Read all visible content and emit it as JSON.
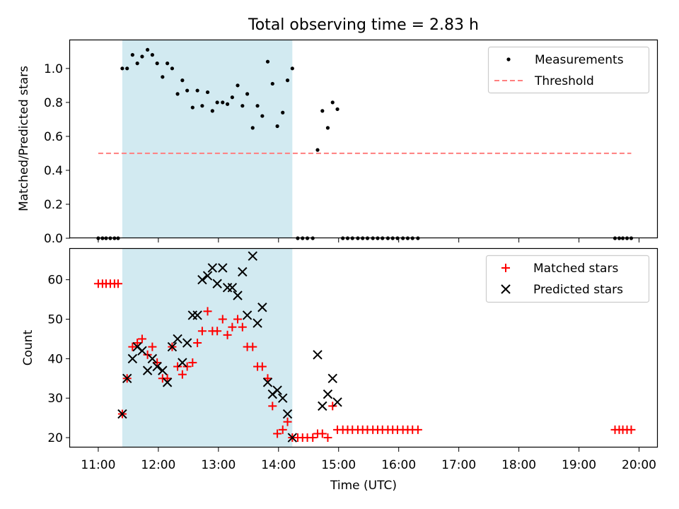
{
  "chart_data": {
    "title": "Total observing time = 2.83 h",
    "xlabel": "Time (UTC)",
    "x_ticks": [
      "11:00",
      "12:00",
      "13:00",
      "14:00",
      "15:00",
      "16:00",
      "17:00",
      "18:00",
      "19:00",
      "20:00"
    ],
    "xlim_hours": [
      10.53,
      20.3
    ],
    "shaded_interval_hours": [
      11.4,
      14.23
    ],
    "colors": {
      "shade": "#add8e6",
      "matched": "#ff0000",
      "predicted": "#000000",
      "threshold": "#ff7f7f",
      "measurement": "#000000"
    },
    "panels": [
      {
        "type": "scatter",
        "ylabel": "Matched/Predicted stars",
        "ylim": [
          0,
          1.17
        ],
        "y_ticks": [
          "0.0",
          "0.2",
          "0.4",
          "0.6",
          "0.8",
          "1.0"
        ],
        "y_tick_values": [
          0,
          0.2,
          0.4,
          0.6,
          0.8,
          1.0
        ],
        "legend": {
          "position": "upper right",
          "measurements_label": "Measurements",
          "threshold_label": "Threshold"
        },
        "threshold": {
          "y": 0.5,
          "x_start": 11.0,
          "x_end": 19.87
        },
        "measurements": [
          [
            11.0,
            0
          ],
          [
            11.07,
            0
          ],
          [
            11.13,
            0
          ],
          [
            11.2,
            0
          ],
          [
            11.27,
            0
          ],
          [
            11.33,
            0
          ],
          [
            11.4,
            1.0
          ],
          [
            11.48,
            1.0
          ],
          [
            11.57,
            1.08
          ],
          [
            11.65,
            1.03
          ],
          [
            11.73,
            1.07
          ],
          [
            11.82,
            1.11
          ],
          [
            11.9,
            1.08
          ],
          [
            11.98,
            1.03
          ],
          [
            12.07,
            0.95
          ],
          [
            12.15,
            1.03
          ],
          [
            12.23,
            1.0
          ],
          [
            12.32,
            0.85
          ],
          [
            12.4,
            0.93
          ],
          [
            12.48,
            0.87
          ],
          [
            12.57,
            0.77
          ],
          [
            12.65,
            0.87
          ],
          [
            12.73,
            0.78
          ],
          [
            12.82,
            0.86
          ],
          [
            12.9,
            0.75
          ],
          [
            12.98,
            0.8
          ],
          [
            13.07,
            0.8
          ],
          [
            13.15,
            0.79
          ],
          [
            13.23,
            0.83
          ],
          [
            13.32,
            0.9
          ],
          [
            13.4,
            0.78
          ],
          [
            13.48,
            0.85
          ],
          [
            13.57,
            0.65
          ],
          [
            13.65,
            0.78
          ],
          [
            13.73,
            0.72
          ],
          [
            13.82,
            1.04
          ],
          [
            13.9,
            0.91
          ],
          [
            13.98,
            0.66
          ],
          [
            14.07,
            0.74
          ],
          [
            14.15,
            0.93
          ],
          [
            14.23,
            1.0
          ],
          [
            14.32,
            0
          ],
          [
            14.4,
            0
          ],
          [
            14.48,
            0
          ],
          [
            14.57,
            0
          ],
          [
            14.65,
            0.52
          ],
          [
            14.73,
            0.75
          ],
          [
            14.82,
            0.65
          ],
          [
            14.9,
            0.8
          ],
          [
            14.98,
            0.76
          ],
          [
            15.07,
            0
          ],
          [
            15.15,
            0
          ],
          [
            15.23,
            0
          ],
          [
            15.32,
            0
          ],
          [
            15.4,
            0
          ],
          [
            15.48,
            0
          ],
          [
            15.57,
            0
          ],
          [
            15.65,
            0
          ],
          [
            15.73,
            0
          ],
          [
            15.82,
            0
          ],
          [
            15.9,
            0
          ],
          [
            15.98,
            0
          ],
          [
            16.07,
            0
          ],
          [
            16.15,
            0
          ],
          [
            16.23,
            0
          ],
          [
            16.32,
            0
          ],
          [
            19.6,
            0
          ],
          [
            19.67,
            0
          ],
          [
            19.73,
            0
          ],
          [
            19.8,
            0
          ],
          [
            19.87,
            0
          ]
        ]
      },
      {
        "type": "scatter",
        "ylabel": "Count",
        "ylim": [
          17.5,
          68
        ],
        "y_ticks": [
          "20",
          "30",
          "40",
          "50",
          "60"
        ],
        "y_tick_values": [
          20,
          30,
          40,
          50,
          60
        ],
        "legend": {
          "position": "upper right",
          "matched_label": "Matched stars",
          "predicted_label": "Predicted stars"
        },
        "matched": [
          [
            11.0,
            59
          ],
          [
            11.07,
            59
          ],
          [
            11.13,
            59
          ],
          [
            11.2,
            59
          ],
          [
            11.27,
            59
          ],
          [
            11.33,
            59
          ],
          [
            11.4,
            26
          ],
          [
            11.48,
            35
          ],
          [
            11.57,
            43
          ],
          [
            11.65,
            44
          ],
          [
            11.73,
            45
          ],
          [
            11.82,
            41
          ],
          [
            11.9,
            43
          ],
          [
            11.98,
            39
          ],
          [
            12.07,
            35
          ],
          [
            12.15,
            35
          ],
          [
            12.23,
            43
          ],
          [
            12.32,
            38
          ],
          [
            12.4,
            36
          ],
          [
            12.48,
            38
          ],
          [
            12.57,
            39
          ],
          [
            12.65,
            44
          ],
          [
            12.73,
            47
          ],
          [
            12.82,
            52
          ],
          [
            12.9,
            47
          ],
          [
            12.98,
            47
          ],
          [
            13.07,
            50
          ],
          [
            13.15,
            46
          ],
          [
            13.23,
            48
          ],
          [
            13.32,
            50
          ],
          [
            13.4,
            48
          ],
          [
            13.48,
            43
          ],
          [
            13.57,
            43
          ],
          [
            13.65,
            38
          ],
          [
            13.73,
            38
          ],
          [
            13.82,
            35
          ],
          [
            13.9,
            28
          ],
          [
            13.98,
            21
          ],
          [
            14.07,
            22
          ],
          [
            14.15,
            24
          ],
          [
            14.23,
            20
          ],
          [
            14.32,
            20
          ],
          [
            14.4,
            20
          ],
          [
            14.48,
            20
          ],
          [
            14.57,
            20
          ],
          [
            14.65,
            21
          ],
          [
            14.73,
            21
          ],
          [
            14.82,
            20
          ],
          [
            14.9,
            28
          ],
          [
            14.98,
            22
          ],
          [
            15.07,
            22
          ],
          [
            15.15,
            22
          ],
          [
            15.23,
            22
          ],
          [
            15.32,
            22
          ],
          [
            15.4,
            22
          ],
          [
            15.48,
            22
          ],
          [
            15.57,
            22
          ],
          [
            15.65,
            22
          ],
          [
            15.73,
            22
          ],
          [
            15.82,
            22
          ],
          [
            15.9,
            22
          ],
          [
            15.98,
            22
          ],
          [
            16.07,
            22
          ],
          [
            16.15,
            22
          ],
          [
            16.23,
            22
          ],
          [
            16.32,
            22
          ],
          [
            19.6,
            22
          ],
          [
            19.67,
            22
          ],
          [
            19.73,
            22
          ],
          [
            19.8,
            22
          ],
          [
            19.87,
            22
          ]
        ],
        "predicted": [
          [
            11.4,
            26
          ],
          [
            11.48,
            35
          ],
          [
            11.57,
            40
          ],
          [
            11.65,
            43
          ],
          [
            11.73,
            42
          ],
          [
            11.82,
            37
          ],
          [
            11.9,
            40
          ],
          [
            11.98,
            38
          ],
          [
            12.07,
            37
          ],
          [
            12.15,
            34
          ],
          [
            12.23,
            43
          ],
          [
            12.32,
            45
          ],
          [
            12.4,
            39
          ],
          [
            12.48,
            44
          ],
          [
            12.57,
            51
          ],
          [
            12.65,
            51
          ],
          [
            12.73,
            60
          ],
          [
            12.82,
            61
          ],
          [
            12.9,
            63
          ],
          [
            12.98,
            59
          ],
          [
            13.07,
            63
          ],
          [
            13.15,
            58
          ],
          [
            13.23,
            58
          ],
          [
            13.32,
            56
          ],
          [
            13.4,
            62
          ],
          [
            13.48,
            51
          ],
          [
            13.57,
            66
          ],
          [
            13.65,
            49
          ],
          [
            13.73,
            53
          ],
          [
            13.82,
            34
          ],
          [
            13.9,
            31
          ],
          [
            13.98,
            32
          ],
          [
            14.07,
            30
          ],
          [
            14.15,
            26
          ],
          [
            14.23,
            20
          ],
          [
            14.65,
            41
          ],
          [
            14.73,
            28
          ],
          [
            14.82,
            31
          ],
          [
            14.9,
            35
          ],
          [
            14.98,
            29
          ]
        ]
      }
    ]
  }
}
